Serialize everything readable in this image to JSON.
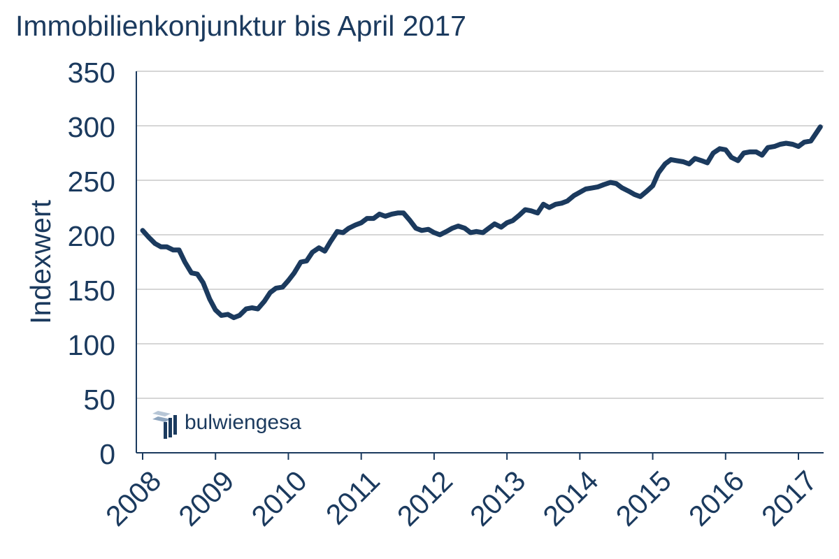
{
  "colors": {
    "line": "#1b3a5e",
    "text": "#1b3a5e",
    "grid": "#c8c8c8",
    "axis": "#1b3a5e",
    "logo_light": "#8fa6bf",
    "logo_dark": "#1b3a5e"
  },
  "logo": {
    "text": "bulwiengesa",
    "icon": "bulwiengesa-logo-icon"
  },
  "chart_data": {
    "type": "line",
    "title": "Immobilienkonjunktur bis April 2017",
    "ylabel": "Indexwert",
    "xlabel": "",
    "ylim": [
      0,
      350
    ],
    "yticks": [
      0,
      50,
      100,
      150,
      200,
      250,
      300,
      350
    ],
    "xlim": [
      2008,
      2017.3
    ],
    "xticks": [
      2008,
      2009,
      2010,
      2011,
      2012,
      2013,
      2014,
      2015,
      2016,
      2017
    ],
    "xtick_labels": [
      "2008",
      "2009",
      "2010",
      "2011",
      "2012",
      "2013",
      "2014",
      "2015",
      "2016",
      "2017"
    ],
    "grid": true,
    "legend": "none",
    "series": [
      {
        "x": [
          2008.0,
          2008.08,
          2008.17,
          2008.25,
          2008.33,
          2008.42,
          2008.5,
          2008.58,
          2008.67,
          2008.75,
          2008.83,
          2008.92,
          2009.0,
          2009.08,
          2009.17,
          2009.25,
          2009.33,
          2009.42,
          2009.5,
          2009.58,
          2009.67,
          2009.75,
          2009.83,
          2009.92,
          2010.0,
          2010.08,
          2010.17,
          2010.25,
          2010.33,
          2010.42,
          2010.5,
          2010.58,
          2010.67,
          2010.75,
          2010.83,
          2010.92,
          2011.0,
          2011.08,
          2011.17,
          2011.25,
          2011.33,
          2011.42,
          2011.5,
          2011.58,
          2011.67,
          2011.75,
          2011.83,
          2011.92,
          2012.0,
          2012.08,
          2012.17,
          2012.25,
          2012.33,
          2012.42,
          2012.5,
          2012.58,
          2012.67,
          2012.75,
          2012.83,
          2012.92,
          2013.0,
          2013.08,
          2013.17,
          2013.25,
          2013.33,
          2013.42,
          2013.5,
          2013.58,
          2013.67,
          2013.75,
          2013.83,
          2013.92,
          2014.0,
          2014.08,
          2014.17,
          2014.25,
          2014.33,
          2014.42,
          2014.5,
          2014.58,
          2014.67,
          2014.75,
          2014.83,
          2014.92,
          2015.0,
          2015.08,
          2015.17,
          2015.25,
          2015.33,
          2015.42,
          2015.5,
          2015.58,
          2015.67,
          2015.75,
          2015.83,
          2015.92,
          2016.0,
          2016.08,
          2016.17,
          2016.25,
          2016.33,
          2016.42,
          2016.5,
          2016.58,
          2016.67,
          2016.75,
          2016.83,
          2016.92,
          2017.0,
          2017.08,
          2017.17,
          2017.25,
          2017.3
        ],
        "values": [
          204,
          198,
          192,
          189,
          189,
          186,
          186,
          175,
          165,
          164,
          156,
          141,
          131,
          126,
          127,
          124,
          126,
          132,
          133,
          132,
          139,
          147,
          151,
          152,
          158,
          165,
          175,
          176,
          184,
          188,
          185,
          194,
          203,
          202,
          206,
          209,
          211,
          215,
          215,
          219,
          217,
          219,
          220,
          220,
          213,
          206,
          204,
          205,
          202,
          200,
          203,
          206,
          208,
          206,
          202,
          203,
          202,
          206,
          210,
          207,
          211,
          213,
          218,
          223,
          222,
          220,
          228,
          225,
          228,
          229,
          231,
          236,
          239,
          242,
          243,
          244,
          246,
          248,
          247,
          243,
          240,
          237,
          235,
          240,
          245,
          257,
          265,
          269,
          268,
          267,
          265,
          270,
          268,
          266,
          275,
          279,
          278,
          271,
          268,
          275,
          276,
          276,
          273,
          280,
          281,
          283,
          284,
          283,
          281,
          285,
          286,
          294,
          299
        ]
      }
    ]
  }
}
